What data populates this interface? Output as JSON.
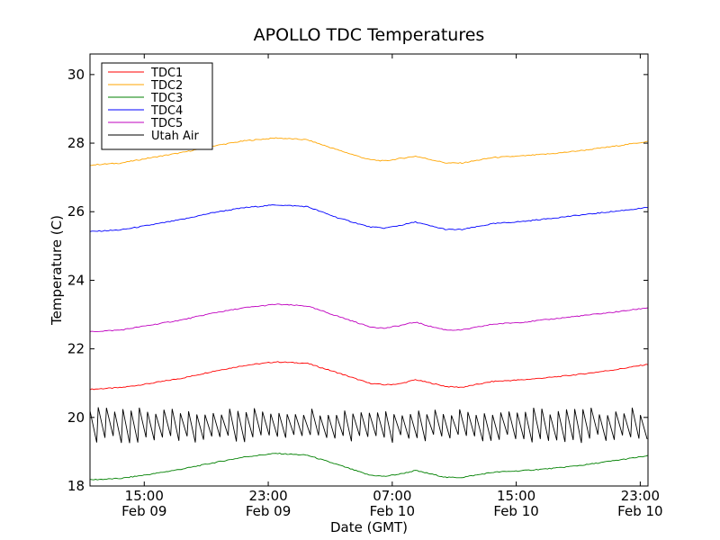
{
  "chart_data": {
    "type": "line",
    "title": "APOLLO TDC Temperatures",
    "xlabel": "Date (GMT)",
    "ylabel": "Temperature (C)",
    "xlim_hours": [
      0,
      36
    ],
    "ylim": [
      18,
      30.6
    ],
    "yticks": [
      18,
      20,
      22,
      24,
      26,
      28,
      30
    ],
    "xticks": [
      {
        "hour": 3.5,
        "time": "15:00",
        "date": "Feb 09"
      },
      {
        "hour": 11.5,
        "time": "23:00",
        "date": "Feb 09"
      },
      {
        "hour": 19.5,
        "time": "07:00",
        "date": "Feb 10"
      },
      {
        "hour": 27.5,
        "time": "15:00",
        "date": "Feb 10"
      },
      {
        "hour": 35.5,
        "time": "23:00",
        "date": "Feb 10"
      }
    ],
    "legend_position": "top-left",
    "x_hours": [
      0,
      2,
      4,
      6,
      8,
      10,
      12,
      14,
      16,
      18,
      19,
      20,
      21,
      22,
      23,
      24,
      26,
      28,
      30,
      32,
      34,
      36
    ],
    "series": [
      {
        "name": "TDC1",
        "color": "#ff0000",
        "values": [
          20.82,
          20.87,
          21.0,
          21.15,
          21.35,
          21.52,
          21.62,
          21.58,
          21.3,
          21.0,
          20.95,
          20.98,
          21.1,
          21.0,
          20.9,
          20.88,
          21.05,
          21.1,
          21.18,
          21.28,
          21.4,
          21.55
        ]
      },
      {
        "name": "TDC2",
        "color": "#ffa500",
        "values": [
          27.36,
          27.42,
          27.58,
          27.73,
          27.92,
          28.07,
          28.15,
          28.1,
          27.8,
          27.52,
          27.48,
          27.55,
          27.62,
          27.52,
          27.42,
          27.42,
          27.58,
          27.63,
          27.7,
          27.8,
          27.92,
          28.05
        ]
      },
      {
        "name": "TDC3",
        "color": "#008000",
        "values": [
          18.18,
          18.22,
          18.35,
          18.5,
          18.68,
          18.85,
          18.95,
          18.9,
          18.62,
          18.32,
          18.28,
          18.35,
          18.45,
          18.35,
          18.25,
          18.25,
          18.4,
          18.45,
          18.52,
          18.62,
          18.75,
          18.88
        ]
      },
      {
        "name": "TDC4",
        "color": "#0000ff",
        "values": [
          25.42,
          25.47,
          25.62,
          25.78,
          25.98,
          26.12,
          26.2,
          26.15,
          25.82,
          25.56,
          25.52,
          25.6,
          25.7,
          25.58,
          25.48,
          25.48,
          25.65,
          25.72,
          25.82,
          25.92,
          26.02,
          26.12
        ]
      },
      {
        "name": "TDC5",
        "color": "#bf00bf",
        "values": [
          22.5,
          22.55,
          22.7,
          22.85,
          23.05,
          23.2,
          23.3,
          23.25,
          22.95,
          22.65,
          22.6,
          22.68,
          22.78,
          22.65,
          22.55,
          22.55,
          22.72,
          22.78,
          22.88,
          22.98,
          23.08,
          23.2
        ]
      },
      {
        "name": "Utah Air",
        "color": "#000000",
        "values": [
          19.75,
          19.75,
          19.75,
          19.75,
          19.75,
          19.75,
          19.75,
          19.75,
          19.75,
          19.75,
          19.75,
          19.75,
          19.75,
          19.75,
          19.75,
          19.75,
          19.75,
          19.75,
          19.75,
          19.75,
          19.75,
          19.75
        ],
        "oscillation_low": 19.35,
        "oscillation_high": 20.15
      }
    ]
  }
}
